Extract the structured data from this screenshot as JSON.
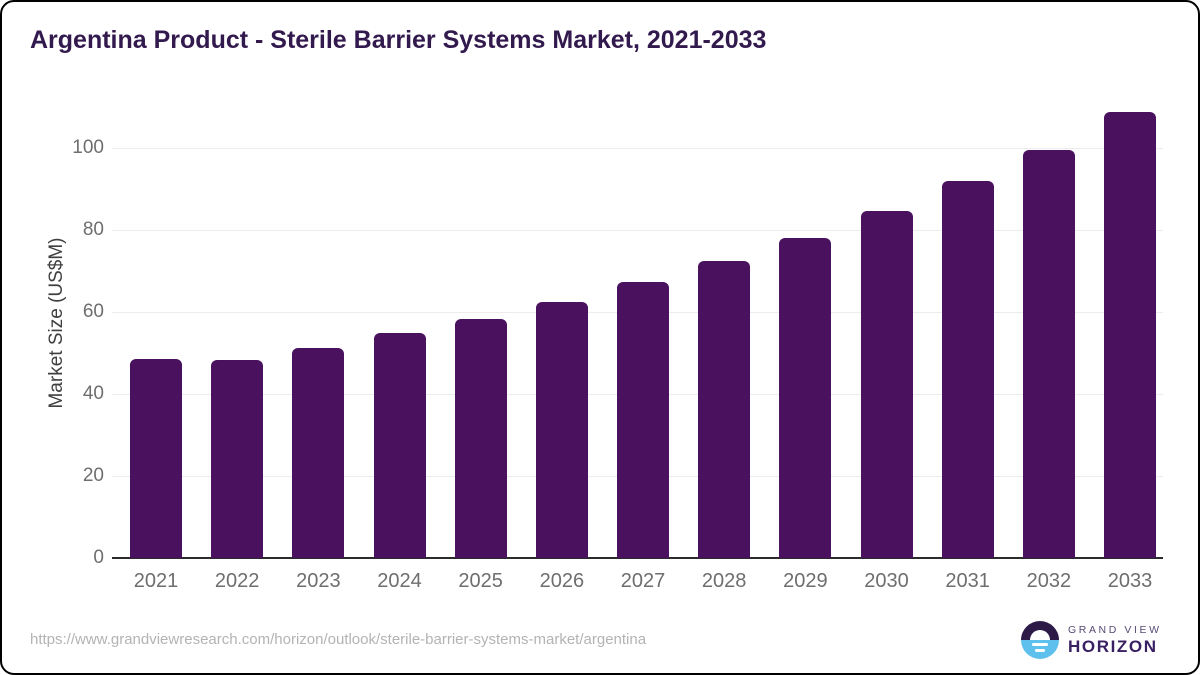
{
  "title": "Argentina Product - Sterile Barrier Systems Market, 2021-2033",
  "y_axis_title": "Market Size (US$M)",
  "footer": {
    "source_url": "https://www.grandviewresearch.com/horizon/outlook/sterile-barrier-systems-market/argentina",
    "logo": {
      "line1": "GRAND VIEW",
      "line2": "HORIZON"
    }
  },
  "colors": {
    "bar": "#4a115f",
    "title_text": "#331a4e",
    "axis_label_text": "#6e6e6e",
    "y_axis_title_text": "#3f3f3f",
    "axis_line": "#2b2b2b",
    "gridline": "#ececec",
    "url_text": "#b3b3b3",
    "logo_top_half": "#2e1a47",
    "logo_bottom_half": "#5ec1ed",
    "logo_line1_text": "#584a74",
    "logo_line2_text": "#3a2062"
  },
  "chart_data": {
    "type": "bar",
    "title": "Argentina Product - Sterile Barrier Systems Market, 2021-2033",
    "xlabel": "",
    "ylabel": "Market Size (US$M)",
    "categories": [
      "2021",
      "2022",
      "2023",
      "2024",
      "2025",
      "2026",
      "2027",
      "2028",
      "2029",
      "2030",
      "2031",
      "2032",
      "2033"
    ],
    "values": [
      48.6,
      48.3,
      51.3,
      54.8,
      58.4,
      62.5,
      67.2,
      72.4,
      78.1,
      84.6,
      91.9,
      99.6,
      108.9
    ],
    "yticks": [
      0,
      20,
      40,
      60,
      80,
      100
    ],
    "ylim": [
      0,
      110
    ],
    "grid": true,
    "legend": false,
    "bar_color": "#4a115f"
  }
}
